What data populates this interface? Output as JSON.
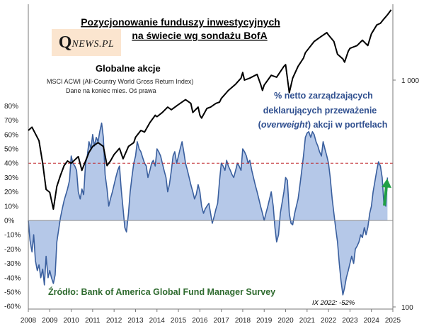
{
  "chart_data": {
    "type": "area",
    "title": "Pozycjonowanie funduszy inwestycyjnych na świecie wg sondażu BofA",
    "title_lines": [
      "Pozycjonowanie funduszy inwestycyjnych",
      "na świecie wg sondażu BofA"
    ],
    "x_ticks": [
      "2008",
      "2009",
      "2010",
      "2011",
      "2012",
      "2013",
      "2014",
      "2015",
      "2016",
      "2017",
      "2018",
      "2019",
      "2020",
      "2021",
      "2022",
      "2023",
      "2024",
      "2025"
    ],
    "left_axis": {
      "ticks": [
        "80%",
        "70%",
        "60%",
        "50%",
        "40%",
        "30%",
        "20%",
        "10%",
        "0%",
        "-10%",
        "-20%",
        "-30%",
        "-40%",
        "-50%",
        "-60%"
      ],
      "ylim": [
        -60,
        80
      ]
    },
    "right_axis": {
      "ticks": [
        "1 000",
        "100"
      ],
      "scale": "log",
      "ylim": [
        100,
        2200
      ]
    },
    "reference_line": {
      "value": 40
    },
    "series": [
      {
        "name": "% netto zarządzających deklarujących przeważenie (overweight) akcji w portfelach",
        "axis": "left",
        "color": "#3a5f9e",
        "fill": "#b5c8e8",
        "points": [
          [
            2008.0,
            0
          ],
          [
            2008.08,
            -14
          ],
          [
            2008.17,
            -22
          ],
          [
            2008.25,
            -10
          ],
          [
            2008.33,
            -28
          ],
          [
            2008.42,
            -35
          ],
          [
            2008.5,
            -31
          ],
          [
            2008.58,
            -40
          ],
          [
            2008.67,
            -34
          ],
          [
            2008.75,
            -45
          ],
          [
            2008.83,
            -25
          ],
          [
            2008.92,
            -40
          ],
          [
            2009.0,
            -35
          ],
          [
            2009.08,
            -40
          ],
          [
            2009.17,
            -44
          ],
          [
            2009.25,
            -38
          ],
          [
            2009.33,
            -15
          ],
          [
            2009.42,
            -6
          ],
          [
            2009.5,
            2
          ],
          [
            2009.58,
            8
          ],
          [
            2009.67,
            14
          ],
          [
            2009.75,
            18
          ],
          [
            2009.83,
            22
          ],
          [
            2009.92,
            28
          ],
          [
            2010.0,
            45
          ],
          [
            2010.08,
            40
          ],
          [
            2010.17,
            38
          ],
          [
            2010.25,
            35
          ],
          [
            2010.33,
            20
          ],
          [
            2010.42,
            15
          ],
          [
            2010.5,
            22
          ],
          [
            2010.58,
            18
          ],
          [
            2010.67,
            40
          ],
          [
            2010.75,
            45
          ],
          [
            2010.83,
            55
          ],
          [
            2010.92,
            50
          ],
          [
            2011.0,
            60
          ],
          [
            2011.08,
            52
          ],
          [
            2011.17,
            58
          ],
          [
            2011.25,
            55
          ],
          [
            2011.33,
            62
          ],
          [
            2011.42,
            68
          ],
          [
            2011.5,
            58
          ],
          [
            2011.58,
            32
          ],
          [
            2011.67,
            22
          ],
          [
            2011.75,
            10
          ],
          [
            2011.83,
            15
          ],
          [
            2011.92,
            20
          ],
          [
            2012.0,
            25
          ],
          [
            2012.08,
            30
          ],
          [
            2012.17,
            35
          ],
          [
            2012.25,
            38
          ],
          [
            2012.33,
            22
          ],
          [
            2012.42,
            8
          ],
          [
            2012.5,
            -5
          ],
          [
            2012.58,
            -8
          ],
          [
            2012.67,
            5
          ],
          [
            2012.75,
            20
          ],
          [
            2012.83,
            30
          ],
          [
            2012.92,
            40
          ],
          [
            2013.0,
            45
          ],
          [
            2013.08,
            55
          ],
          [
            2013.17,
            50
          ],
          [
            2013.25,
            48
          ],
          [
            2013.33,
            44
          ],
          [
            2013.42,
            40
          ],
          [
            2013.5,
            38
          ],
          [
            2013.58,
            30
          ],
          [
            2013.67,
            35
          ],
          [
            2013.75,
            40
          ],
          [
            2013.83,
            42
          ],
          [
            2013.92,
            38
          ],
          [
            2014.0,
            50
          ],
          [
            2014.08,
            48
          ],
          [
            2014.17,
            45
          ],
          [
            2014.25,
            40
          ],
          [
            2014.33,
            35
          ],
          [
            2014.42,
            30
          ],
          [
            2014.5,
            20
          ],
          [
            2014.58,
            25
          ],
          [
            2014.67,
            35
          ],
          [
            2014.75,
            45
          ],
          [
            2014.83,
            48
          ],
          [
            2014.92,
            40
          ],
          [
            2015.0,
            45
          ],
          [
            2015.08,
            50
          ],
          [
            2015.17,
            55
          ],
          [
            2015.25,
            48
          ],
          [
            2015.33,
            40
          ],
          [
            2015.42,
            35
          ],
          [
            2015.5,
            30
          ],
          [
            2015.58,
            25
          ],
          [
            2015.67,
            20
          ],
          [
            2015.75,
            15
          ],
          [
            2015.83,
            18
          ],
          [
            2015.92,
            25
          ],
          [
            2016.0,
            20
          ],
          [
            2016.08,
            10
          ],
          [
            2016.17,
            5
          ],
          [
            2016.25,
            8
          ],
          [
            2016.33,
            10
          ],
          [
            2016.42,
            12
          ],
          [
            2016.5,
            5
          ],
          [
            2016.58,
            -2
          ],
          [
            2016.67,
            3
          ],
          [
            2016.75,
            8
          ],
          [
            2016.83,
            12
          ],
          [
            2016.92,
            28
          ],
          [
            2017.0,
            40
          ],
          [
            2017.08,
            38
          ],
          [
            2017.17,
            35
          ],
          [
            2017.25,
            42
          ],
          [
            2017.33,
            38
          ],
          [
            2017.42,
            35
          ],
          [
            2017.5,
            32
          ],
          [
            2017.58,
            30
          ],
          [
            2017.67,
            35
          ],
          [
            2017.75,
            40
          ],
          [
            2017.83,
            38
          ],
          [
            2017.92,
            35
          ],
          [
            2018.0,
            50
          ],
          [
            2018.08,
            48
          ],
          [
            2018.17,
            45
          ],
          [
            2018.25,
            40
          ],
          [
            2018.33,
            42
          ],
          [
            2018.42,
            35
          ],
          [
            2018.5,
            30
          ],
          [
            2018.58,
            25
          ],
          [
            2018.67,
            20
          ],
          [
            2018.75,
            15
          ],
          [
            2018.83,
            10
          ],
          [
            2018.92,
            5
          ],
          [
            2019.0,
            0
          ],
          [
            2019.08,
            5
          ],
          [
            2019.17,
            10
          ],
          [
            2019.25,
            15
          ],
          [
            2019.33,
            20
          ],
          [
            2019.42,
            10
          ],
          [
            2019.5,
            -5
          ],
          [
            2019.58,
            -15
          ],
          [
            2019.67,
            -10
          ],
          [
            2019.75,
            5
          ],
          [
            2019.83,
            12
          ],
          [
            2019.92,
            20
          ],
          [
            2020.0,
            30
          ],
          [
            2020.08,
            28
          ],
          [
            2020.17,
            5
          ],
          [
            2020.25,
            -2
          ],
          [
            2020.33,
            -3
          ],
          [
            2020.42,
            5
          ],
          [
            2020.5,
            10
          ],
          [
            2020.58,
            15
          ],
          [
            2020.67,
            25
          ],
          [
            2020.75,
            35
          ],
          [
            2020.83,
            45
          ],
          [
            2020.92,
            58
          ],
          [
            2021.0,
            61
          ],
          [
            2021.08,
            62
          ],
          [
            2021.17,
            58
          ],
          [
            2021.25,
            62
          ],
          [
            2021.33,
            60
          ],
          [
            2021.42,
            55
          ],
          [
            2021.5,
            52
          ],
          [
            2021.58,
            48
          ],
          [
            2021.67,
            45
          ],
          [
            2021.75,
            55
          ],
          [
            2021.83,
            50
          ],
          [
            2021.92,
            45
          ],
          [
            2022.0,
            40
          ],
          [
            2022.08,
            30
          ],
          [
            2022.17,
            15
          ],
          [
            2022.25,
            5
          ],
          [
            2022.33,
            -5
          ],
          [
            2022.42,
            -15
          ],
          [
            2022.5,
            -30
          ],
          [
            2022.58,
            -42
          ],
          [
            2022.67,
            -52
          ],
          [
            2022.75,
            -47
          ],
          [
            2022.83,
            -40
          ],
          [
            2022.92,
            -35
          ],
          [
            2023.0,
            -30
          ],
          [
            2023.08,
            -25
          ],
          [
            2023.17,
            -30
          ],
          [
            2023.25,
            -20
          ],
          [
            2023.33,
            -18
          ],
          [
            2023.42,
            -15
          ],
          [
            2023.5,
            -10
          ],
          [
            2023.58,
            -12
          ],
          [
            2023.67,
            -5
          ],
          [
            2023.75,
            -10
          ],
          [
            2023.83,
            -5
          ],
          [
            2023.92,
            5
          ],
          [
            2024.0,
            10
          ],
          [
            2024.08,
            20
          ],
          [
            2024.17,
            28
          ],
          [
            2024.25,
            35
          ],
          [
            2024.33,
            41
          ],
          [
            2024.42,
            38
          ],
          [
            2024.5,
            30
          ],
          [
            2024.58,
            12
          ],
          [
            2024.67,
            10
          ],
          [
            2024.75,
            30
          ]
        ]
      },
      {
        "name": "Globalne akcje",
        "axis": "right",
        "color": "#000000",
        "points": [
          [
            2008.0,
            600
          ],
          [
            2008.17,
            620
          ],
          [
            2008.33,
            580
          ],
          [
            2008.5,
            540
          ],
          [
            2008.67,
            430
          ],
          [
            2008.83,
            330
          ],
          [
            2009.0,
            320
          ],
          [
            2009.17,
            270
          ],
          [
            2009.33,
            340
          ],
          [
            2009.5,
            380
          ],
          [
            2009.67,
            420
          ],
          [
            2009.83,
            440
          ],
          [
            2010.0,
            430
          ],
          [
            2010.33,
            460
          ],
          [
            2010.5,
            400
          ],
          [
            2010.67,
            440
          ],
          [
            2010.83,
            480
          ],
          [
            2011.0,
            510
          ],
          [
            2011.25,
            530
          ],
          [
            2011.5,
            510
          ],
          [
            2011.67,
            420
          ],
          [
            2011.83,
            440
          ],
          [
            2012.0,
            470
          ],
          [
            2012.25,
            500
          ],
          [
            2012.42,
            450
          ],
          [
            2012.67,
            510
          ],
          [
            2012.92,
            530
          ],
          [
            2013.0,
            560
          ],
          [
            2013.25,
            600
          ],
          [
            2013.42,
            590
          ],
          [
            2013.67,
            650
          ],
          [
            2013.92,
            700
          ],
          [
            2014.0,
            690
          ],
          [
            2014.25,
            720
          ],
          [
            2014.5,
            760
          ],
          [
            2014.67,
            740
          ],
          [
            2014.92,
            770
          ],
          [
            2015.0,
            780
          ],
          [
            2015.33,
            820
          ],
          [
            2015.58,
            790
          ],
          [
            2015.67,
            720
          ],
          [
            2015.92,
            760
          ],
          [
            2016.0,
            700
          ],
          [
            2016.08,
            680
          ],
          [
            2016.33,
            750
          ],
          [
            2016.5,
            760
          ],
          [
            2016.75,
            790
          ],
          [
            2016.92,
            800
          ],
          [
            2017.0,
            830
          ],
          [
            2017.33,
            900
          ],
          [
            2017.67,
            960
          ],
          [
            2017.92,
            1020
          ],
          [
            2018.0,
            1080
          ],
          [
            2018.08,
            1000
          ],
          [
            2018.33,
            1020
          ],
          [
            2018.67,
            1060
          ],
          [
            2018.83,
            960
          ],
          [
            2018.92,
            900
          ],
          [
            2019.0,
            950
          ],
          [
            2019.33,
            1050
          ],
          [
            2019.58,
            1030
          ],
          [
            2019.92,
            1150
          ],
          [
            2020.0,
            1170
          ],
          [
            2020.17,
            880
          ],
          [
            2020.33,
            1020
          ],
          [
            2020.58,
            1150
          ],
          [
            2020.83,
            1250
          ],
          [
            2020.92,
            1320
          ],
          [
            2021.0,
            1350
          ],
          [
            2021.33,
            1480
          ],
          [
            2021.67,
            1560
          ],
          [
            2021.92,
            1620
          ],
          [
            2022.0,
            1580
          ],
          [
            2022.25,
            1480
          ],
          [
            2022.42,
            1300
          ],
          [
            2022.67,
            1240
          ],
          [
            2022.75,
            1200
          ],
          [
            2022.92,
            1340
          ],
          [
            2023.0,
            1380
          ],
          [
            2023.33,
            1420
          ],
          [
            2023.58,
            1500
          ],
          [
            2023.83,
            1420
          ],
          [
            2024.0,
            1600
          ],
          [
            2024.25,
            1750
          ],
          [
            2024.42,
            1780
          ],
          [
            2024.58,
            1860
          ],
          [
            2024.75,
            1940
          ],
          [
            2024.92,
            2040
          ]
        ]
      }
    ]
  },
  "labels": {
    "logo_q": "Q",
    "logo_rest": "NEWS.PL",
    "stocks_heading": "Globalne  akcje",
    "stocks_sub1": "MSCI ACWI (All-Country World Gross Return Index)",
    "stocks_sub2": "Dane na koniec mies. Oś prawa",
    "pos_line1": "% netto zarządzających",
    "pos_line2": "deklarujących przeważenie",
    "pos_line3_pre": "(",
    "pos_line3_em": "overweight",
    "pos_line3_post": ") akcji w portfelach",
    "source": "Źródło: Bank of America Global Fund Manager Survey",
    "ix_note": "IX 2022: -52%"
  },
  "colors": {
    "area_fill": "#b5c8e8",
    "area_line": "#3a5f9e",
    "stock_line": "#000000",
    "ref_line": "#c0282d",
    "arrow": "#22a045",
    "label_blue": "#2f4f8f",
    "source_green": "#2f6b2f",
    "logo_bg": "#fbe5cf"
  }
}
